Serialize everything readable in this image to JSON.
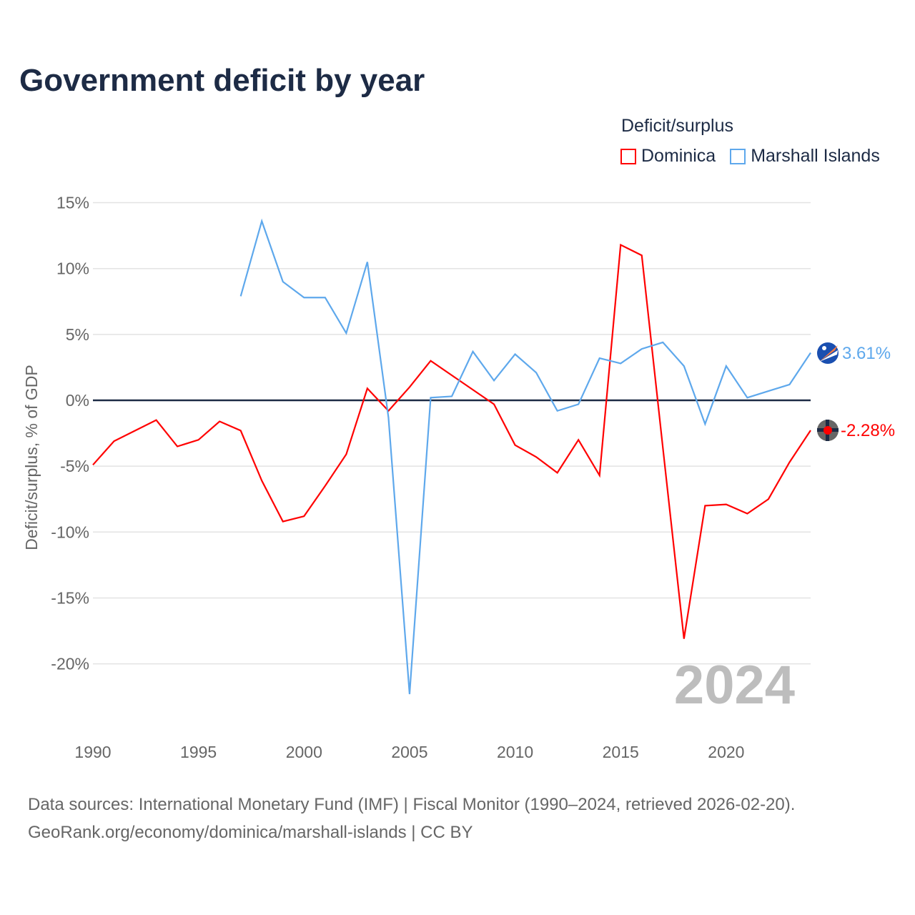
{
  "title": "Government deficit by year",
  "legend": {
    "title": "Deficit/surplus",
    "items": [
      "Dominica",
      "Marshall Islands"
    ]
  },
  "colors": {
    "Dominica": "#ff0000",
    "Marshall Islands": "#5ea8ec",
    "zero": "#1d2b45"
  },
  "year_watermark": "2024",
  "end_labels": {
    "Dominica": "-2.28%",
    "Marshall Islands": "3.61%"
  },
  "sources": {
    "line1": "Data sources: International Monetary Fund (IMF) | Fiscal Monitor (1990–2024, retrieved 2026-02-20).",
    "line2": "GeoRank.org/economy/dominica/marshall-islands | CC BY"
  },
  "chart_data": {
    "type": "line",
    "title": "Government deficit by year",
    "xlabel": "",
    "ylabel": "Deficit/surplus, % of GDP",
    "xlim": [
      1990,
      2024
    ],
    "ylim": [
      -25,
      15
    ],
    "xticks": [
      "1990",
      "1995",
      "2000",
      "2005",
      "2010",
      "2015",
      "2020"
    ],
    "yticks": [
      "15%",
      "10%",
      "5%",
      "0%",
      "-5%",
      "-10%",
      "-15%",
      "-20%"
    ],
    "ytick_values": [
      15,
      10,
      5,
      0,
      -5,
      -10,
      -15,
      -20
    ],
    "grid": true,
    "legend_position": "top-right",
    "series": [
      {
        "name": "Dominica",
        "x_start": 1990,
        "values": [
          -4.9,
          -3.1,
          -2.3,
          -1.5,
          -3.5,
          -3.0,
          -1.6,
          -2.3,
          -6.1,
          -9.2,
          -8.8,
          -6.5,
          -4.1,
          0.9,
          -0.8,
          1.0,
          3.0,
          1.9,
          0.8,
          -0.3,
          -3.4,
          -4.3,
          -5.5,
          -3.0,
          -5.7,
          11.8,
          11.0,
          -3.6,
          -18.1,
          -8.0,
          -7.9,
          -8.6,
          -7.5,
          -4.7,
          -2.28
        ]
      },
      {
        "name": "Marshall Islands",
        "x_start": 1997,
        "values": [
          7.9,
          13.6,
          9.0,
          7.8,
          7.8,
          5.1,
          10.5,
          -1.3,
          -22.3,
          0.2,
          0.3,
          3.7,
          1.5,
          3.5,
          2.1,
          -0.8,
          -0.3,
          3.2,
          2.8,
          3.9,
          4.4,
          2.6,
          -1.8,
          2.6,
          0.2,
          0.7,
          1.2,
          3.61
        ]
      }
    ]
  }
}
